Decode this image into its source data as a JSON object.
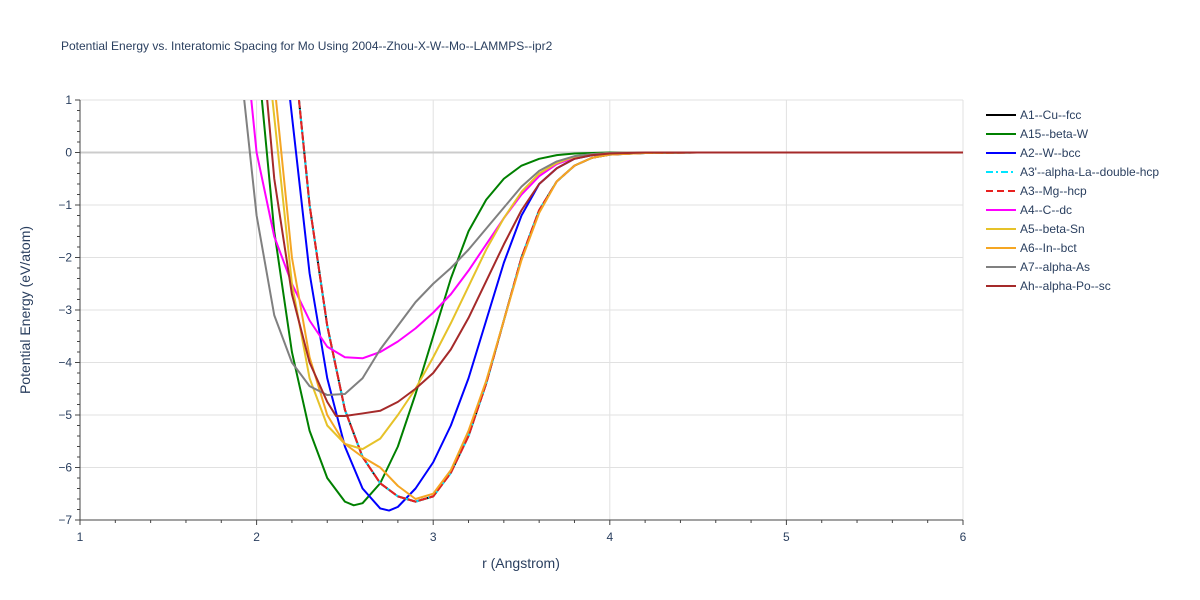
{
  "chart_data": {
    "type": "line",
    "title": "Potential Energy vs. Interatomic Spacing for Mo Using 2004--Zhou-X-W--Mo--LAMMPS--ipr2",
    "xlabel": "r (Angstrom)",
    "ylabel": "Potential Energy (eV/atom)",
    "xlim": [
      1,
      6
    ],
    "ylim": [
      -7,
      1
    ],
    "xticks": [
      1,
      2,
      3,
      4,
      5,
      6
    ],
    "yticks": [
      1,
      0,
      -1,
      -2,
      -3,
      -4,
      -5,
      -6,
      -7
    ],
    "xtick_labels": [
      "1",
      "2",
      "3",
      "4",
      "5",
      "6"
    ],
    "ytick_labels": [
      "1",
      "0",
      "−1",
      "−2",
      "−3",
      "−4",
      "−5",
      "−6",
      "−7"
    ],
    "grid": true,
    "legend_position": "right",
    "series": [
      {
        "name": "A1--Cu--fcc",
        "color": "#000000",
        "dash": "solid",
        "points": [
          [
            2.24,
            1.0
          ],
          [
            2.3,
            -1.0
          ],
          [
            2.4,
            -3.3
          ],
          [
            2.5,
            -4.9
          ],
          [
            2.6,
            -5.8
          ],
          [
            2.7,
            -6.3
          ],
          [
            2.8,
            -6.55
          ],
          [
            2.9,
            -6.65
          ],
          [
            3.0,
            -6.55
          ],
          [
            3.1,
            -6.1
          ],
          [
            3.2,
            -5.4
          ],
          [
            3.3,
            -4.4
          ],
          [
            3.4,
            -3.2
          ],
          [
            3.5,
            -2.0
          ],
          [
            3.6,
            -1.1
          ],
          [
            3.7,
            -0.55
          ],
          [
            3.8,
            -0.25
          ],
          [
            3.9,
            -0.1
          ],
          [
            4.0,
            -0.04
          ],
          [
            4.2,
            -0.01
          ],
          [
            4.5,
            0
          ],
          [
            6.0,
            0
          ]
        ]
      },
      {
        "name": "A15--beta-W",
        "color": "#008000",
        "dash": "solid",
        "points": [
          [
            2.03,
            1.0
          ],
          [
            2.1,
            -1.5
          ],
          [
            2.2,
            -3.8
          ],
          [
            2.3,
            -5.3
          ],
          [
            2.4,
            -6.2
          ],
          [
            2.5,
            -6.65
          ],
          [
            2.55,
            -6.72
          ],
          [
            2.6,
            -6.68
          ],
          [
            2.7,
            -6.3
          ],
          [
            2.8,
            -5.6
          ],
          [
            2.9,
            -4.6
          ],
          [
            3.0,
            -3.5
          ],
          [
            3.1,
            -2.4
          ],
          [
            3.2,
            -1.5
          ],
          [
            3.3,
            -0.9
          ],
          [
            3.4,
            -0.5
          ],
          [
            3.5,
            -0.25
          ],
          [
            3.6,
            -0.12
          ],
          [
            3.7,
            -0.05
          ],
          [
            3.8,
            -0.02
          ],
          [
            4.0,
            0
          ],
          [
            6.0,
            0
          ]
        ]
      },
      {
        "name": "A2--W--bcc",
        "color": "#0000ff",
        "dash": "solid",
        "points": [
          [
            2.19,
            1.0
          ],
          [
            2.3,
            -2.3
          ],
          [
            2.4,
            -4.3
          ],
          [
            2.5,
            -5.6
          ],
          [
            2.6,
            -6.4
          ],
          [
            2.7,
            -6.78
          ],
          [
            2.75,
            -6.82
          ],
          [
            2.8,
            -6.75
          ],
          [
            2.9,
            -6.4
          ],
          [
            3.0,
            -5.9
          ],
          [
            3.1,
            -5.2
          ],
          [
            3.2,
            -4.3
          ],
          [
            3.3,
            -3.2
          ],
          [
            3.4,
            -2.1
          ],
          [
            3.5,
            -1.2
          ],
          [
            3.6,
            -0.6
          ],
          [
            3.7,
            -0.3
          ],
          [
            3.8,
            -0.12
          ],
          [
            3.9,
            -0.05
          ],
          [
            4.0,
            -0.02
          ],
          [
            4.2,
            0
          ],
          [
            6.0,
            0
          ]
        ]
      },
      {
        "name": "A3'--alpha-La--double-hcp",
        "color": "#00e5ff",
        "dash": "dashdot",
        "points": [
          [
            2.24,
            1.0
          ],
          [
            2.3,
            -1.0
          ],
          [
            2.4,
            -3.3
          ],
          [
            2.5,
            -4.9
          ],
          [
            2.6,
            -5.8
          ],
          [
            2.7,
            -6.3
          ],
          [
            2.8,
            -6.55
          ],
          [
            2.9,
            -6.65
          ],
          [
            3.0,
            -6.55
          ],
          [
            3.1,
            -6.1
          ],
          [
            3.2,
            -5.4
          ],
          [
            3.3,
            -4.4
          ],
          [
            3.4,
            -3.2
          ],
          [
            3.5,
            -2.0
          ],
          [
            3.6,
            -1.1
          ],
          [
            3.7,
            -0.55
          ],
          [
            3.8,
            -0.25
          ],
          [
            3.9,
            -0.1
          ],
          [
            4.0,
            -0.04
          ],
          [
            4.2,
            -0.01
          ],
          [
            4.5,
            0
          ],
          [
            6.0,
            0
          ]
        ]
      },
      {
        "name": "A3--Mg--hcp",
        "color": "#e8201f",
        "dash": "dash",
        "points": [
          [
            2.24,
            1.0
          ],
          [
            2.3,
            -1.0
          ],
          [
            2.4,
            -3.3
          ],
          [
            2.5,
            -4.9
          ],
          [
            2.6,
            -5.8
          ],
          [
            2.7,
            -6.3
          ],
          [
            2.8,
            -6.55
          ],
          [
            2.9,
            -6.65
          ],
          [
            3.0,
            -6.55
          ],
          [
            3.1,
            -6.1
          ],
          [
            3.2,
            -5.4
          ],
          [
            3.3,
            -4.4
          ],
          [
            3.4,
            -3.2
          ],
          [
            3.5,
            -2.0
          ],
          [
            3.6,
            -1.1
          ],
          [
            3.7,
            -0.55
          ],
          [
            3.8,
            -0.25
          ],
          [
            3.9,
            -0.1
          ],
          [
            4.0,
            -0.04
          ],
          [
            4.2,
            -0.01
          ],
          [
            4.5,
            0
          ],
          [
            6.0,
            0
          ]
        ]
      },
      {
        "name": "A4--C--dc",
        "color": "#ff00ff",
        "dash": "solid",
        "points": [
          [
            1.97,
            1.0
          ],
          [
            2.0,
            0.0
          ],
          [
            2.1,
            -1.6
          ],
          [
            2.2,
            -2.5
          ],
          [
            2.3,
            -3.2
          ],
          [
            2.4,
            -3.7
          ],
          [
            2.5,
            -3.9
          ],
          [
            2.6,
            -3.92
          ],
          [
            2.7,
            -3.8
          ],
          [
            2.8,
            -3.6
          ],
          [
            2.9,
            -3.35
          ],
          [
            3.0,
            -3.05
          ],
          [
            3.1,
            -2.7
          ],
          [
            3.2,
            -2.25
          ],
          [
            3.3,
            -1.75
          ],
          [
            3.4,
            -1.25
          ],
          [
            3.5,
            -0.8
          ],
          [
            3.6,
            -0.45
          ],
          [
            3.7,
            -0.22
          ],
          [
            3.8,
            -0.1
          ],
          [
            3.9,
            -0.04
          ],
          [
            4.0,
            -0.01
          ],
          [
            4.2,
            0
          ],
          [
            6.0,
            0
          ]
        ]
      },
      {
        "name": "A5--beta-Sn",
        "color": "#e6c229",
        "dash": "solid",
        "points": [
          [
            2.09,
            1.0
          ],
          [
            2.2,
            -2.5
          ],
          [
            2.3,
            -4.3
          ],
          [
            2.4,
            -5.2
          ],
          [
            2.5,
            -5.55
          ],
          [
            2.6,
            -5.65
          ],
          [
            2.7,
            -5.45
          ],
          [
            2.8,
            -5.0
          ],
          [
            2.9,
            -4.5
          ],
          [
            3.0,
            -3.9
          ],
          [
            3.1,
            -3.25
          ],
          [
            3.2,
            -2.55
          ],
          [
            3.3,
            -1.85
          ],
          [
            3.4,
            -1.25
          ],
          [
            3.5,
            -0.75
          ],
          [
            3.6,
            -0.4
          ],
          [
            3.7,
            -0.2
          ],
          [
            3.8,
            -0.08
          ],
          [
            3.9,
            -0.03
          ],
          [
            4.0,
            -0.01
          ],
          [
            4.2,
            0
          ],
          [
            6.0,
            0
          ]
        ]
      },
      {
        "name": "A6--In--bct",
        "color": "#f5a623",
        "dash": "solid",
        "points": [
          [
            2.11,
            1.0
          ],
          [
            2.2,
            -2.0
          ],
          [
            2.3,
            -3.9
          ],
          [
            2.4,
            -5.0
          ],
          [
            2.5,
            -5.55
          ],
          [
            2.6,
            -5.8
          ],
          [
            2.7,
            -6.0
          ],
          [
            2.8,
            -6.35
          ],
          [
            2.9,
            -6.6
          ],
          [
            3.0,
            -6.5
          ],
          [
            3.1,
            -6.05
          ],
          [
            3.2,
            -5.3
          ],
          [
            3.3,
            -4.35
          ],
          [
            3.4,
            -3.2
          ],
          [
            3.5,
            -2.05
          ],
          [
            3.6,
            -1.15
          ],
          [
            3.7,
            -0.55
          ],
          [
            3.8,
            -0.25
          ],
          [
            3.9,
            -0.1
          ],
          [
            4.0,
            -0.04
          ],
          [
            4.2,
            -0.01
          ],
          [
            4.5,
            0
          ],
          [
            6.0,
            0
          ]
        ]
      },
      {
        "name": "A7--alpha-As",
        "color": "#808080",
        "dash": "solid",
        "points": [
          [
            1.93,
            1.0
          ],
          [
            2.0,
            -1.2
          ],
          [
            2.1,
            -3.1
          ],
          [
            2.2,
            -4.0
          ],
          [
            2.3,
            -4.45
          ],
          [
            2.4,
            -4.62
          ],
          [
            2.5,
            -4.6
          ],
          [
            2.6,
            -4.3
          ],
          [
            2.7,
            -3.75
          ],
          [
            2.8,
            -3.3
          ],
          [
            2.9,
            -2.85
          ],
          [
            3.0,
            -2.5
          ],
          [
            3.1,
            -2.2
          ],
          [
            3.2,
            -1.85
          ],
          [
            3.3,
            -1.45
          ],
          [
            3.4,
            -1.05
          ],
          [
            3.5,
            -0.65
          ],
          [
            3.6,
            -0.35
          ],
          [
            3.7,
            -0.17
          ],
          [
            3.8,
            -0.07
          ],
          [
            3.9,
            -0.03
          ],
          [
            4.0,
            -0.01
          ],
          [
            4.2,
            0
          ],
          [
            6.0,
            0
          ]
        ]
      },
      {
        "name": "Ah--alpha-Po--sc",
        "color": "#a52a2a",
        "dash": "solid",
        "points": [
          [
            2.06,
            1.0
          ],
          [
            2.1,
            -0.5
          ],
          [
            2.2,
            -2.7
          ],
          [
            2.3,
            -4.0
          ],
          [
            2.4,
            -4.75
          ],
          [
            2.45,
            -5.02
          ],
          [
            2.5,
            -5.02
          ],
          [
            2.6,
            -4.97
          ],
          [
            2.7,
            -4.92
          ],
          [
            2.8,
            -4.75
          ],
          [
            2.9,
            -4.5
          ],
          [
            3.0,
            -4.2
          ],
          [
            3.1,
            -3.75
          ],
          [
            3.2,
            -3.15
          ],
          [
            3.3,
            -2.45
          ],
          [
            3.4,
            -1.75
          ],
          [
            3.5,
            -1.1
          ],
          [
            3.6,
            -0.6
          ],
          [
            3.7,
            -0.3
          ],
          [
            3.8,
            -0.12
          ],
          [
            3.9,
            -0.05
          ],
          [
            4.0,
            -0.02
          ],
          [
            4.2,
            0
          ],
          [
            6.0,
            0
          ]
        ]
      }
    ]
  }
}
